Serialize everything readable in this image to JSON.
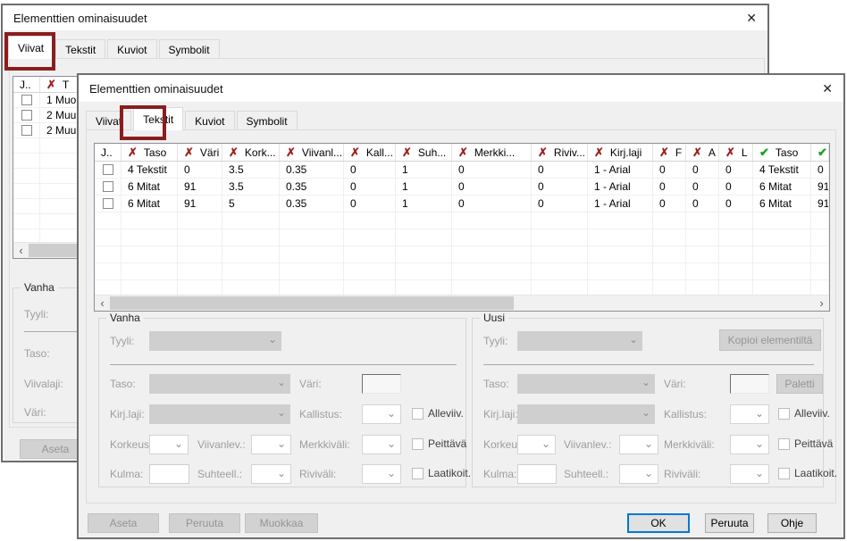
{
  "colors": {
    "annotation": "#8b1d1d",
    "x_icon": "#a11f1f",
    "check_icon": "#1fa01f",
    "ok_border": "#0078d7"
  },
  "icons": {
    "close": "✕",
    "x_mark": "✗",
    "check_mark": "✔",
    "chevron_down": "⌄",
    "scroll_left": "‹",
    "scroll_right": "›"
  },
  "back_dialog": {
    "title": "Elementtien ominaisuudet",
    "tabs": [
      {
        "label": "Viivat",
        "active": true
      },
      {
        "label": "Tekstit",
        "active": false
      },
      {
        "label": "Kuviot",
        "active": false
      },
      {
        "label": "Symbolit",
        "active": false
      }
    ],
    "table": {
      "columns": [
        {
          "label": "J..",
          "icon": "none"
        },
        {
          "label": "T",
          "icon": "x"
        }
      ],
      "rows": [
        [
          "1 Muo"
        ],
        [
          "2 Muu"
        ],
        [
          "2 Muu"
        ]
      ]
    },
    "group": {
      "legend": "Vanha",
      "labels": {
        "tyyli": "Tyyli:",
        "taso": "Taso:",
        "viivalaji": "Viivalaji:",
        "vari": "Väri:"
      }
    },
    "buttons": {
      "aseta": "Aseta"
    }
  },
  "front_dialog": {
    "title": "Elementtien ominaisuudet",
    "tabs": [
      {
        "label": "Viivat",
        "active": false
      },
      {
        "label": "Tekstit",
        "active": true
      },
      {
        "label": "Kuviot",
        "active": false
      },
      {
        "label": "Symbolit",
        "active": false
      }
    ],
    "table": {
      "columns": [
        {
          "label": "J..",
          "icon": "none"
        },
        {
          "label": "Taso",
          "icon": "x"
        },
        {
          "label": "Väri",
          "icon": "x"
        },
        {
          "label": "Kork...",
          "icon": "x"
        },
        {
          "label": "Viivanl...",
          "icon": "x"
        },
        {
          "label": "Kall...",
          "icon": "x"
        },
        {
          "label": "Suh...",
          "icon": "x"
        },
        {
          "label": "Merkki...",
          "icon": "x"
        },
        {
          "label": "Riviv...",
          "icon": "x"
        },
        {
          "label": "Kirj.laji",
          "icon": "x"
        },
        {
          "label": "F",
          "icon": "x"
        },
        {
          "label": "A",
          "icon": "x"
        },
        {
          "label": "L",
          "icon": "x"
        },
        {
          "label": "Taso",
          "icon": "check"
        },
        {
          "label": "",
          "icon": "check"
        }
      ],
      "rows": [
        [
          "4 Tekstit",
          "0",
          "3.5",
          "0.35",
          "0",
          "1",
          "0",
          "0",
          "1 - Arial",
          "0",
          "0",
          "0",
          "4 Tekstit",
          "0"
        ],
        [
          "6 Mitat",
          "91",
          "3.5",
          "0.35",
          "0",
          "1",
          "0",
          "0",
          "1 - Arial",
          "0",
          "0",
          "0",
          "6 Mitat",
          "91"
        ],
        [
          "6 Mitat",
          "91",
          "5",
          "0.35",
          "0",
          "1",
          "0",
          "0",
          "1 - Arial",
          "0",
          "0",
          "0",
          "6 Mitat",
          "91"
        ]
      ]
    },
    "vanha_legend": "Vanha",
    "uusi_legend": "Uusi",
    "field_labels": {
      "tyyli": "Tyyli:",
      "taso": "Taso:",
      "vari": "Väri:",
      "kirjlaji": "Kirj.laji:",
      "kallistus": "Kallistus:",
      "korkeus": "Korkeus:",
      "viivanlev": "Viivanlev.:",
      "merkkivali": "Merkkiväli:",
      "kulma": "Kulma:",
      "suhteell": "Suhteell.:",
      "rivivali": "Riviväli:"
    },
    "checkbox_labels": {
      "alleviiv": "Alleviiv.",
      "peittava": "Peittävä",
      "laatikoit": "Laatikoit."
    },
    "uusi_buttons": {
      "kopioi": "Kopioi elementiltä",
      "paletti": "Paletti"
    },
    "footer_buttons": {
      "aseta": "Aseta",
      "peruuta": "Peruuta",
      "muokkaa": "Muokkaa",
      "ok": "OK",
      "peruuta2": "Peruuta",
      "ohje": "Ohje"
    }
  }
}
